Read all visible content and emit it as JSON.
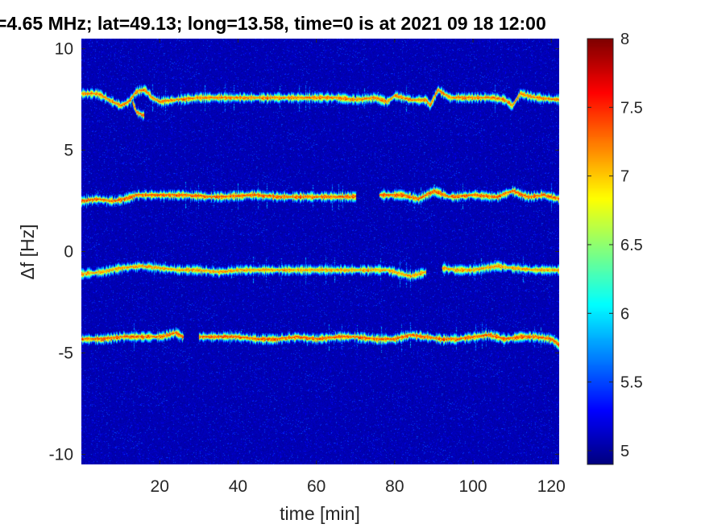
{
  "chart_data": {
    "type": "heatmap",
    "title": "=4.65 MHz;  lat=49.13; long=13.58, time=0 is at 2021 09 18 12:00",
    "xlabel": "time [min]",
    "ylabel": "Δf [Hz]",
    "xlim": [
      0,
      122
    ],
    "ylim": [
      -10.5,
      10.5
    ],
    "x_ticks": [
      20,
      40,
      60,
      80,
      100,
      120
    ],
    "x_tick_labels": [
      "20",
      "40",
      "60",
      "80",
      "100",
      "120"
    ],
    "y_ticks": [
      10,
      5,
      0,
      -5,
      -10
    ],
    "y_tick_labels": [
      "10",
      "5",
      "0",
      "-5",
      "-10"
    ],
    "colorbar": {
      "colormap": "jet",
      "range": [
        4.9,
        8
      ],
      "ticks": [
        8,
        7.5,
        7,
        6.5,
        6,
        5.5,
        5
      ],
      "tick_labels": [
        "8",
        "7.5",
        "7",
        "6.5",
        "6",
        "5.5",
        "5"
      ]
    },
    "background_level": 5.0,
    "traces": [
      {
        "name": "",
        "level": 7.2,
        "segments": [
          [
            [
              0,
              7.8
            ],
            [
              4,
              7.8
            ],
            [
              7,
              7.5
            ],
            [
              10,
              7.2
            ],
            [
              12,
              7.4
            ],
            [
              14,
              7.9
            ],
            [
              16,
              8.0
            ],
            [
              18,
              7.6
            ],
            [
              20,
              7.4
            ],
            [
              24,
              7.5
            ],
            [
              30,
              7.6
            ],
            [
              40,
              7.6
            ],
            [
              50,
              7.6
            ],
            [
              60,
              7.6
            ],
            [
              65,
              7.6
            ],
            [
              70,
              7.5
            ],
            [
              75,
              7.6
            ],
            [
              78,
              7.4
            ],
            [
              80,
              7.7
            ],
            [
              84,
              7.5
            ],
            [
              88,
              7.5
            ],
            [
              89,
              7.2
            ],
            [
              91,
              8.0
            ],
            [
              94,
              7.6
            ],
            [
              100,
              7.6
            ],
            [
              105,
              7.6
            ],
            [
              108,
              7.5
            ],
            [
              110,
              7.2
            ],
            [
              112,
              7.8
            ],
            [
              116,
              7.6
            ],
            [
              122,
              7.5
            ]
          ],
          [
            [
              13,
              7.4
            ],
            [
              14,
              6.9
            ],
            [
              16,
              6.7
            ]
          ]
        ]
      },
      {
        "name": "",
        "level": 7.3,
        "segments": [
          [
            [
              0,
              2.5
            ],
            [
              4,
              2.6
            ],
            [
              8,
              2.5
            ],
            [
              11,
              2.6
            ],
            [
              14,
              2.8
            ],
            [
              20,
              2.8
            ],
            [
              26,
              2.8
            ],
            [
              34,
              2.7
            ],
            [
              44,
              2.8
            ],
            [
              52,
              2.7
            ],
            [
              60,
              2.7
            ],
            [
              66,
              2.7
            ],
            [
              70,
              2.7
            ]
          ],
          [
            [
              76,
              2.8
            ],
            [
              82,
              2.8
            ],
            [
              86,
              2.6
            ],
            [
              90,
              3.0
            ],
            [
              94,
              2.7
            ],
            [
              100,
              2.8
            ],
            [
              106,
              2.7
            ],
            [
              110,
              3.0
            ],
            [
              114,
              2.7
            ],
            [
              118,
              2.8
            ],
            [
              122,
              2.6
            ]
          ]
        ]
      },
      {
        "name": "",
        "level": 7.1,
        "segments": [
          [
            [
              0,
              -1.1
            ],
            [
              5,
              -1.0
            ],
            [
              10,
              -0.8
            ],
            [
              15,
              -0.7
            ],
            [
              20,
              -0.8
            ],
            [
              25,
              -0.9
            ],
            [
              30,
              -0.9
            ],
            [
              35,
              -1.0
            ],
            [
              40,
              -0.9
            ],
            [
              45,
              -0.9
            ],
            [
              50,
              -0.9
            ],
            [
              55,
              -0.9
            ],
            [
              60,
              -0.9
            ],
            [
              66,
              -0.9
            ],
            [
              72,
              -0.9
            ],
            [
              78,
              -0.9
            ],
            [
              84,
              -1.2
            ],
            [
              88,
              -1.0
            ]
          ],
          [
            [
              92,
              -0.8
            ],
            [
              96,
              -0.9
            ],
            [
              100,
              -0.9
            ],
            [
              106,
              -0.7
            ],
            [
              110,
              -0.8
            ],
            [
              116,
              -0.9
            ],
            [
              122,
              -0.9
            ]
          ]
        ]
      },
      {
        "name": "",
        "level": 7.3,
        "segments": [
          [
            [
              0,
              -4.3
            ],
            [
              5,
              -4.3
            ],
            [
              10,
              -4.2
            ],
            [
              15,
              -4.2
            ],
            [
              20,
              -4.2
            ],
            [
              24,
              -4.0
            ],
            [
              26,
              -4.2
            ]
          ],
          [
            [
              30,
              -4.2
            ],
            [
              35,
              -4.2
            ],
            [
              40,
              -4.2
            ],
            [
              45,
              -4.3
            ],
            [
              50,
              -4.3
            ],
            [
              55,
              -4.2
            ],
            [
              60,
              -4.3
            ],
            [
              65,
              -4.2
            ],
            [
              70,
              -4.2
            ],
            [
              75,
              -4.3
            ],
            [
              80,
              -4.3
            ],
            [
              84,
              -4.1
            ],
            [
              88,
              -4.2
            ],
            [
              92,
              -4.3
            ],
            [
              96,
              -4.3
            ],
            [
              100,
              -4.2
            ],
            [
              104,
              -4.1
            ],
            [
              108,
              -4.3
            ],
            [
              112,
              -4.2
            ],
            [
              116,
              -4.2
            ],
            [
              120,
              -4.3
            ],
            [
              122,
              -4.6
            ]
          ]
        ]
      }
    ]
  }
}
